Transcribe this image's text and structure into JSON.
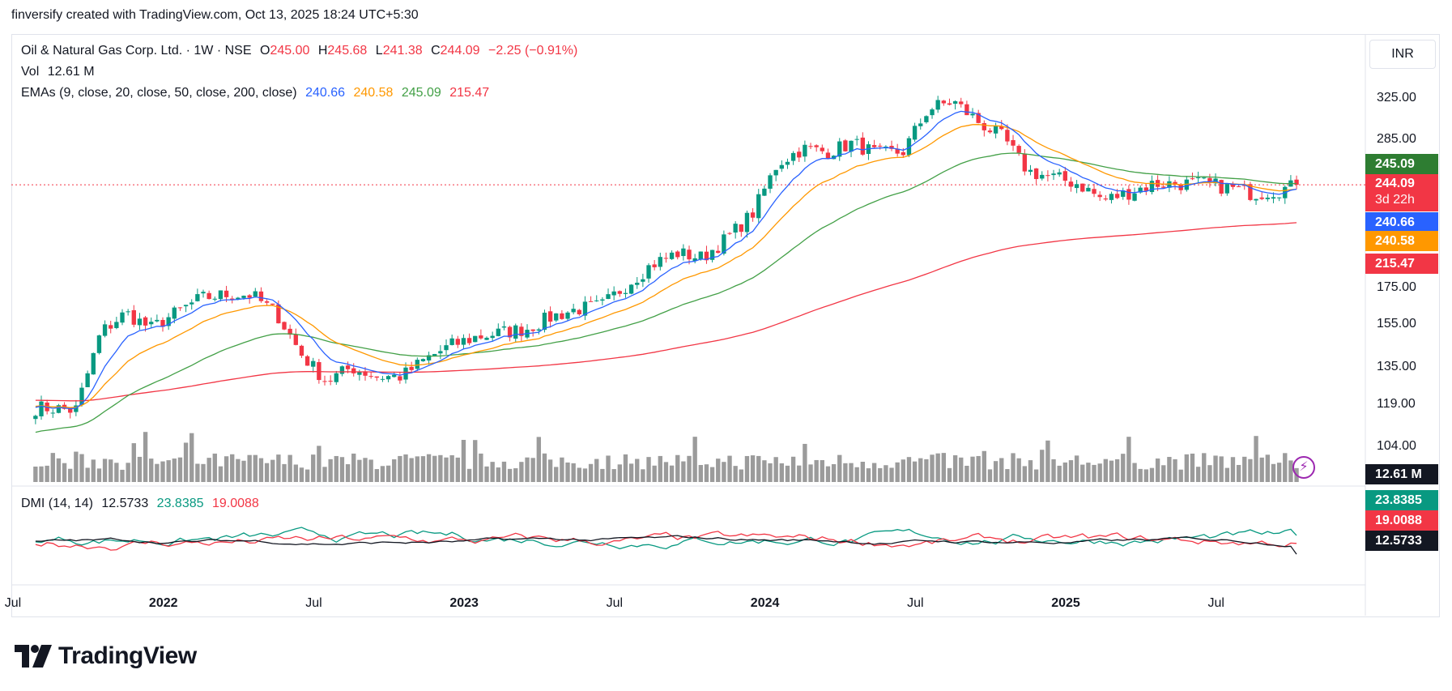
{
  "header": {
    "attribution": "finversify created with TradingView.com, Oct 13, 2025 18:24 UTC+5:30"
  },
  "legend": {
    "symbol": "Oil & Natural Gas Corp. Ltd. · 1W · NSE",
    "o_label": "O",
    "o_value": "245.00",
    "h_label": "H",
    "h_value": "245.68",
    "l_label": "L",
    "l_value": "241.38",
    "c_label": "C",
    "c_value": "244.09",
    "change": "−2.25 (−0.91%)",
    "vol_label": "Vol",
    "vol_value": "12.61 M",
    "ema_label": "EMAs (9, close, 20, close, 50, close, 200, close)",
    "ema9": "240.66",
    "ema20": "240.58",
    "ema50": "245.09",
    "ema200": "215.47",
    "dmi_label": "DMI (14, 14)",
    "adx": "12.5733",
    "plus_di": "23.8385",
    "minus_di": "19.0088"
  },
  "price_axis": {
    "currency": "INR",
    "badges": {
      "ema50": "245.09",
      "last": "244.09",
      "countdown": "3d 22h",
      "ema9": "240.66",
      "ema20": "240.58",
      "ema200": "215.47",
      "volume": "12.61 M",
      "plus_di": "23.8385",
      "minus_di": "19.0088",
      "adx": "12.5733"
    }
  },
  "branding": {
    "logo_text": "TradingView"
  },
  "colors": {
    "up": "#089981",
    "down": "#f23645",
    "ema9": "#2962ff",
    "ema20": "#ff9800",
    "ema50": "#43a047",
    "ema200": "#f23645",
    "volume": "#7a7a7a",
    "plus_di": "#089981",
    "minus_di": "#f23645",
    "adx": "#131722"
  },
  "icons": {
    "flash": "lightning-icon",
    "logo": "tradingview-logo-icon"
  },
  "chart_data": {
    "type": "candlestick",
    "scale": "log",
    "y_ticks": [
      104,
      119,
      135,
      155,
      175,
      285,
      325
    ],
    "y_tick_labels": [
      "104.00",
      "119.00",
      "135.00",
      "155.00",
      "175.00",
      "285.00",
      "325.00"
    ],
    "x_tick_labels": [
      "Jul",
      "2022",
      "Jul",
      "2023",
      "Jul",
      "2024",
      "Jul",
      "2025",
      "Jul"
    ],
    "x_tick_dates": [
      "2021-07",
      "2022-01",
      "2022-07",
      "2023-01",
      "2023-07",
      "2024-01",
      "2024-07",
      "2025-01",
      "2025-07"
    ],
    "last_price": 244.09,
    "period": "1W",
    "weekly_close_anchors": [
      [
        "2021-08",
        117
      ],
      [
        "2021-09",
        116
      ],
      [
        "2021-10",
        150
      ],
      [
        "2021-11",
        160
      ],
      [
        "2021-12",
        152
      ],
      [
        "2022-01",
        160
      ],
      [
        "2022-02",
        168
      ],
      [
        "2022-03",
        170
      ],
      [
        "2022-04",
        170
      ],
      [
        "2022-05",
        160
      ],
      [
        "2022-06",
        140
      ],
      [
        "2022-07",
        128
      ],
      [
        "2022-08",
        134
      ],
      [
        "2022-09",
        130
      ],
      [
        "2022-10",
        130
      ],
      [
        "2022-11",
        138
      ],
      [
        "2022-12",
        144
      ],
      [
        "2023-01",
        148
      ],
      [
        "2023-02",
        150
      ],
      [
        "2023-03",
        152
      ],
      [
        "2023-04",
        158
      ],
      [
        "2023-05",
        162
      ],
      [
        "2023-06",
        164
      ],
      [
        "2023-07",
        176
      ],
      [
        "2023-08",
        188
      ],
      [
        "2023-09",
        195
      ],
      [
        "2023-10",
        192
      ],
      [
        "2023-11",
        205
      ],
      [
        "2023-12",
        222
      ],
      [
        "2024-01",
        262
      ],
      [
        "2024-02",
        275
      ],
      [
        "2024-03",
        272
      ],
      [
        "2024-04",
        280
      ],
      [
        "2024-05",
        270
      ],
      [
        "2024-06",
        272
      ],
      [
        "2024-07",
        312
      ],
      [
        "2024-08",
        320
      ],
      [
        "2024-09",
        300
      ],
      [
        "2024-10",
        285
      ],
      [
        "2024-11",
        255
      ],
      [
        "2024-12",
        250
      ],
      [
        "2025-01",
        245
      ],
      [
        "2025-02",
        232
      ],
      [
        "2025-03",
        238
      ],
      [
        "2025-04",
        245
      ],
      [
        "2025-05",
        245
      ],
      [
        "2025-06",
        245
      ],
      [
        "2025-07",
        242
      ],
      [
        "2025-08",
        237
      ],
      [
        "2025-09",
        240
      ],
      [
        "2025-10",
        244.09
      ]
    ],
    "ema_last": {
      "ema9": 240.66,
      "ema20": 240.58,
      "ema50": 245.09,
      "ema200": 215.47
    },
    "volume_last": "12.61 M",
    "dmi_last": {
      "plus_di": 23.8385,
      "minus_di": 19.0088,
      "adx": 12.5733
    }
  }
}
